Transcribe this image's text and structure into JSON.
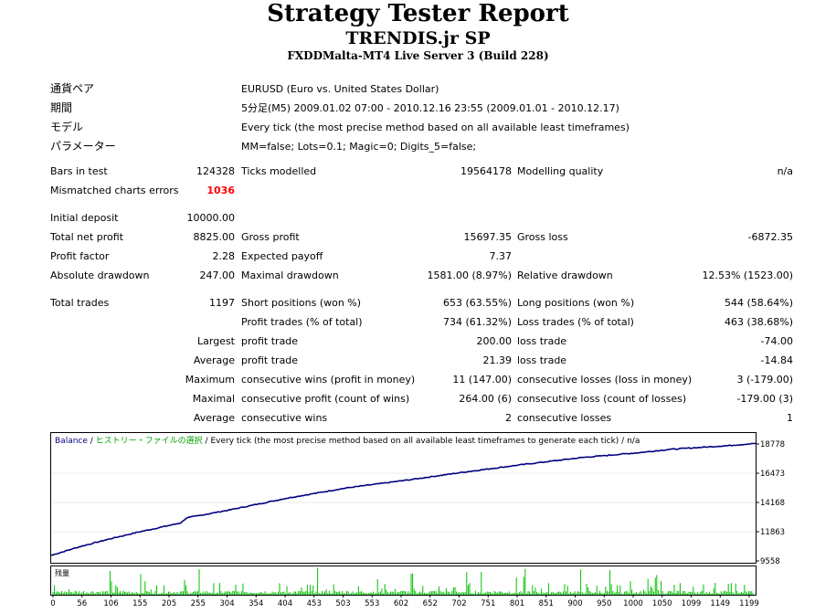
{
  "report": {
    "title": "Strategy Tester Report",
    "subtitle": "TRENDIS.jr SP",
    "server": "FXDDMalta-MT4 Live Server 3 (Build 228)"
  },
  "info": [
    {
      "label": "通貨ペア",
      "value": "EURUSD (Euro vs. United States Dollar)"
    },
    {
      "label": "期間",
      "value": "5分足(M5) 2009.01.02 07:00 - 2010.12.16 23:55 (2009.01.01 - 2010.12.17)"
    },
    {
      "label": "モデル",
      "value": "Every tick (the most precise method based on all available least timeframes)"
    },
    {
      "label": "パラメーター",
      "value": "MM=false; Lots=0.1; Magic=0; Digits_5=false;"
    }
  ],
  "stats": {
    "bars_in_test": {
      "label": "Bars in test",
      "value": "124328"
    },
    "ticks_modelled": {
      "label": "Ticks modelled",
      "value": "19564178"
    },
    "modelling_quality": {
      "label": "Modelling quality",
      "value": "n/a"
    },
    "mismatched": {
      "label": "Mismatched charts errors",
      "value": "1036"
    },
    "initial_deposit": {
      "label": "Initial deposit",
      "value": "10000.00"
    },
    "total_net_profit": {
      "label": "Total net profit",
      "value": "8825.00"
    },
    "gross_profit": {
      "label": "Gross profit",
      "value": "15697.35"
    },
    "gross_loss": {
      "label": "Gross loss",
      "value": "-6872.35"
    },
    "profit_factor": {
      "label": "Profit factor",
      "value": "2.28"
    },
    "expected_payoff": {
      "label": "Expected payoff",
      "value": "7.37"
    },
    "absolute_drawdown": {
      "label": "Absolute drawdown",
      "value": "247.00"
    },
    "maximal_drawdown": {
      "label": "Maximal drawdown",
      "value": "1581.00 (8.97%)"
    },
    "relative_drawdown": {
      "label": "Relative drawdown",
      "value": "12.53% (1523.00)"
    },
    "total_trades": {
      "label": "Total trades",
      "value": "1197"
    },
    "short_positions": {
      "label": "Short positions (won %)",
      "value": "653 (63.55%)"
    },
    "long_positions": {
      "label": "Long positions (won %)",
      "value": "544 (58.64%)"
    },
    "profit_trades": {
      "label": "Profit trades (% of total)",
      "value": "734 (61.32%)"
    },
    "loss_trades": {
      "label": "Loss trades (% of total)",
      "value": "463 (38.68%)"
    }
  },
  "prefix": {
    "largest": "Largest",
    "average": "Average",
    "maximum": "Maximum",
    "maximal": "Maximal"
  },
  "detail": {
    "largest_profit": {
      "label": "profit trade",
      "value": "200.00"
    },
    "largest_loss": {
      "label": "loss trade",
      "value": "-74.00"
    },
    "average_profit": {
      "label": "profit trade",
      "value": "21.39"
    },
    "average_loss": {
      "label": "loss trade",
      "value": "-14.84"
    },
    "max_wins": {
      "label": "consecutive wins (profit in money)",
      "value": "11 (147.00)"
    },
    "max_losses": {
      "label": "consecutive losses (loss in money)",
      "value": "3 (-179.00)"
    },
    "maximal_profit": {
      "label": "consecutive profit (count of wins)",
      "value": "264.00 (6)"
    },
    "maximal_loss": {
      "label": "consecutive loss (count of losses)",
      "value": "-179.00 (3)"
    },
    "avg_wins": {
      "label": "consecutive wins",
      "value": "2"
    },
    "avg_losses": {
      "label": "consecutive losses",
      "value": "1"
    }
  },
  "chart_data": {
    "type": "line",
    "legend": {
      "series": "Balance",
      "sep1": " / ",
      "history": "ヒストリー・ファイルの選択",
      "sep2": " / ",
      "model": "Every tick (the most precise method based on all available least timeframes to generate each tick)",
      "sep3": " / ",
      "quality": "n/a"
    },
    "volume_label": "残量",
    "ylim": [
      9558,
      18778
    ],
    "xlim": [
      0,
      1197
    ],
    "y_ticks": [
      "18778",
      "16473",
      "14168",
      "11863",
      "9558"
    ],
    "x_ticks": [
      "0",
      "56",
      "106",
      "155",
      "205",
      "255",
      "304",
      "354",
      "404",
      "453",
      "503",
      "553",
      "602",
      "652",
      "702",
      "751",
      "801",
      "851",
      "900",
      "950",
      "1000",
      "1050",
      "1099",
      "1149",
      "1199"
    ],
    "series": [
      {
        "name": "Balance",
        "color": "#000080",
        "x": [
          0,
          50,
          100,
          150,
          200,
          220,
          230,
          300,
          400,
          500,
          600,
          700,
          800,
          900,
          1000,
          1050,
          1100,
          1150,
          1197
        ],
        "y": [
          10000,
          10700,
          11300,
          11850,
          12350,
          12550,
          12950,
          13550,
          14500,
          15300,
          15900,
          16550,
          17150,
          17700,
          18100,
          18350,
          18500,
          18650,
          18825
        ]
      }
    ],
    "colors": {
      "balance": "#000080",
      "volume": "#00c000",
      "legend_balance": "#000080",
      "legend_history": "#00a000",
      "frame": "#000000"
    }
  }
}
